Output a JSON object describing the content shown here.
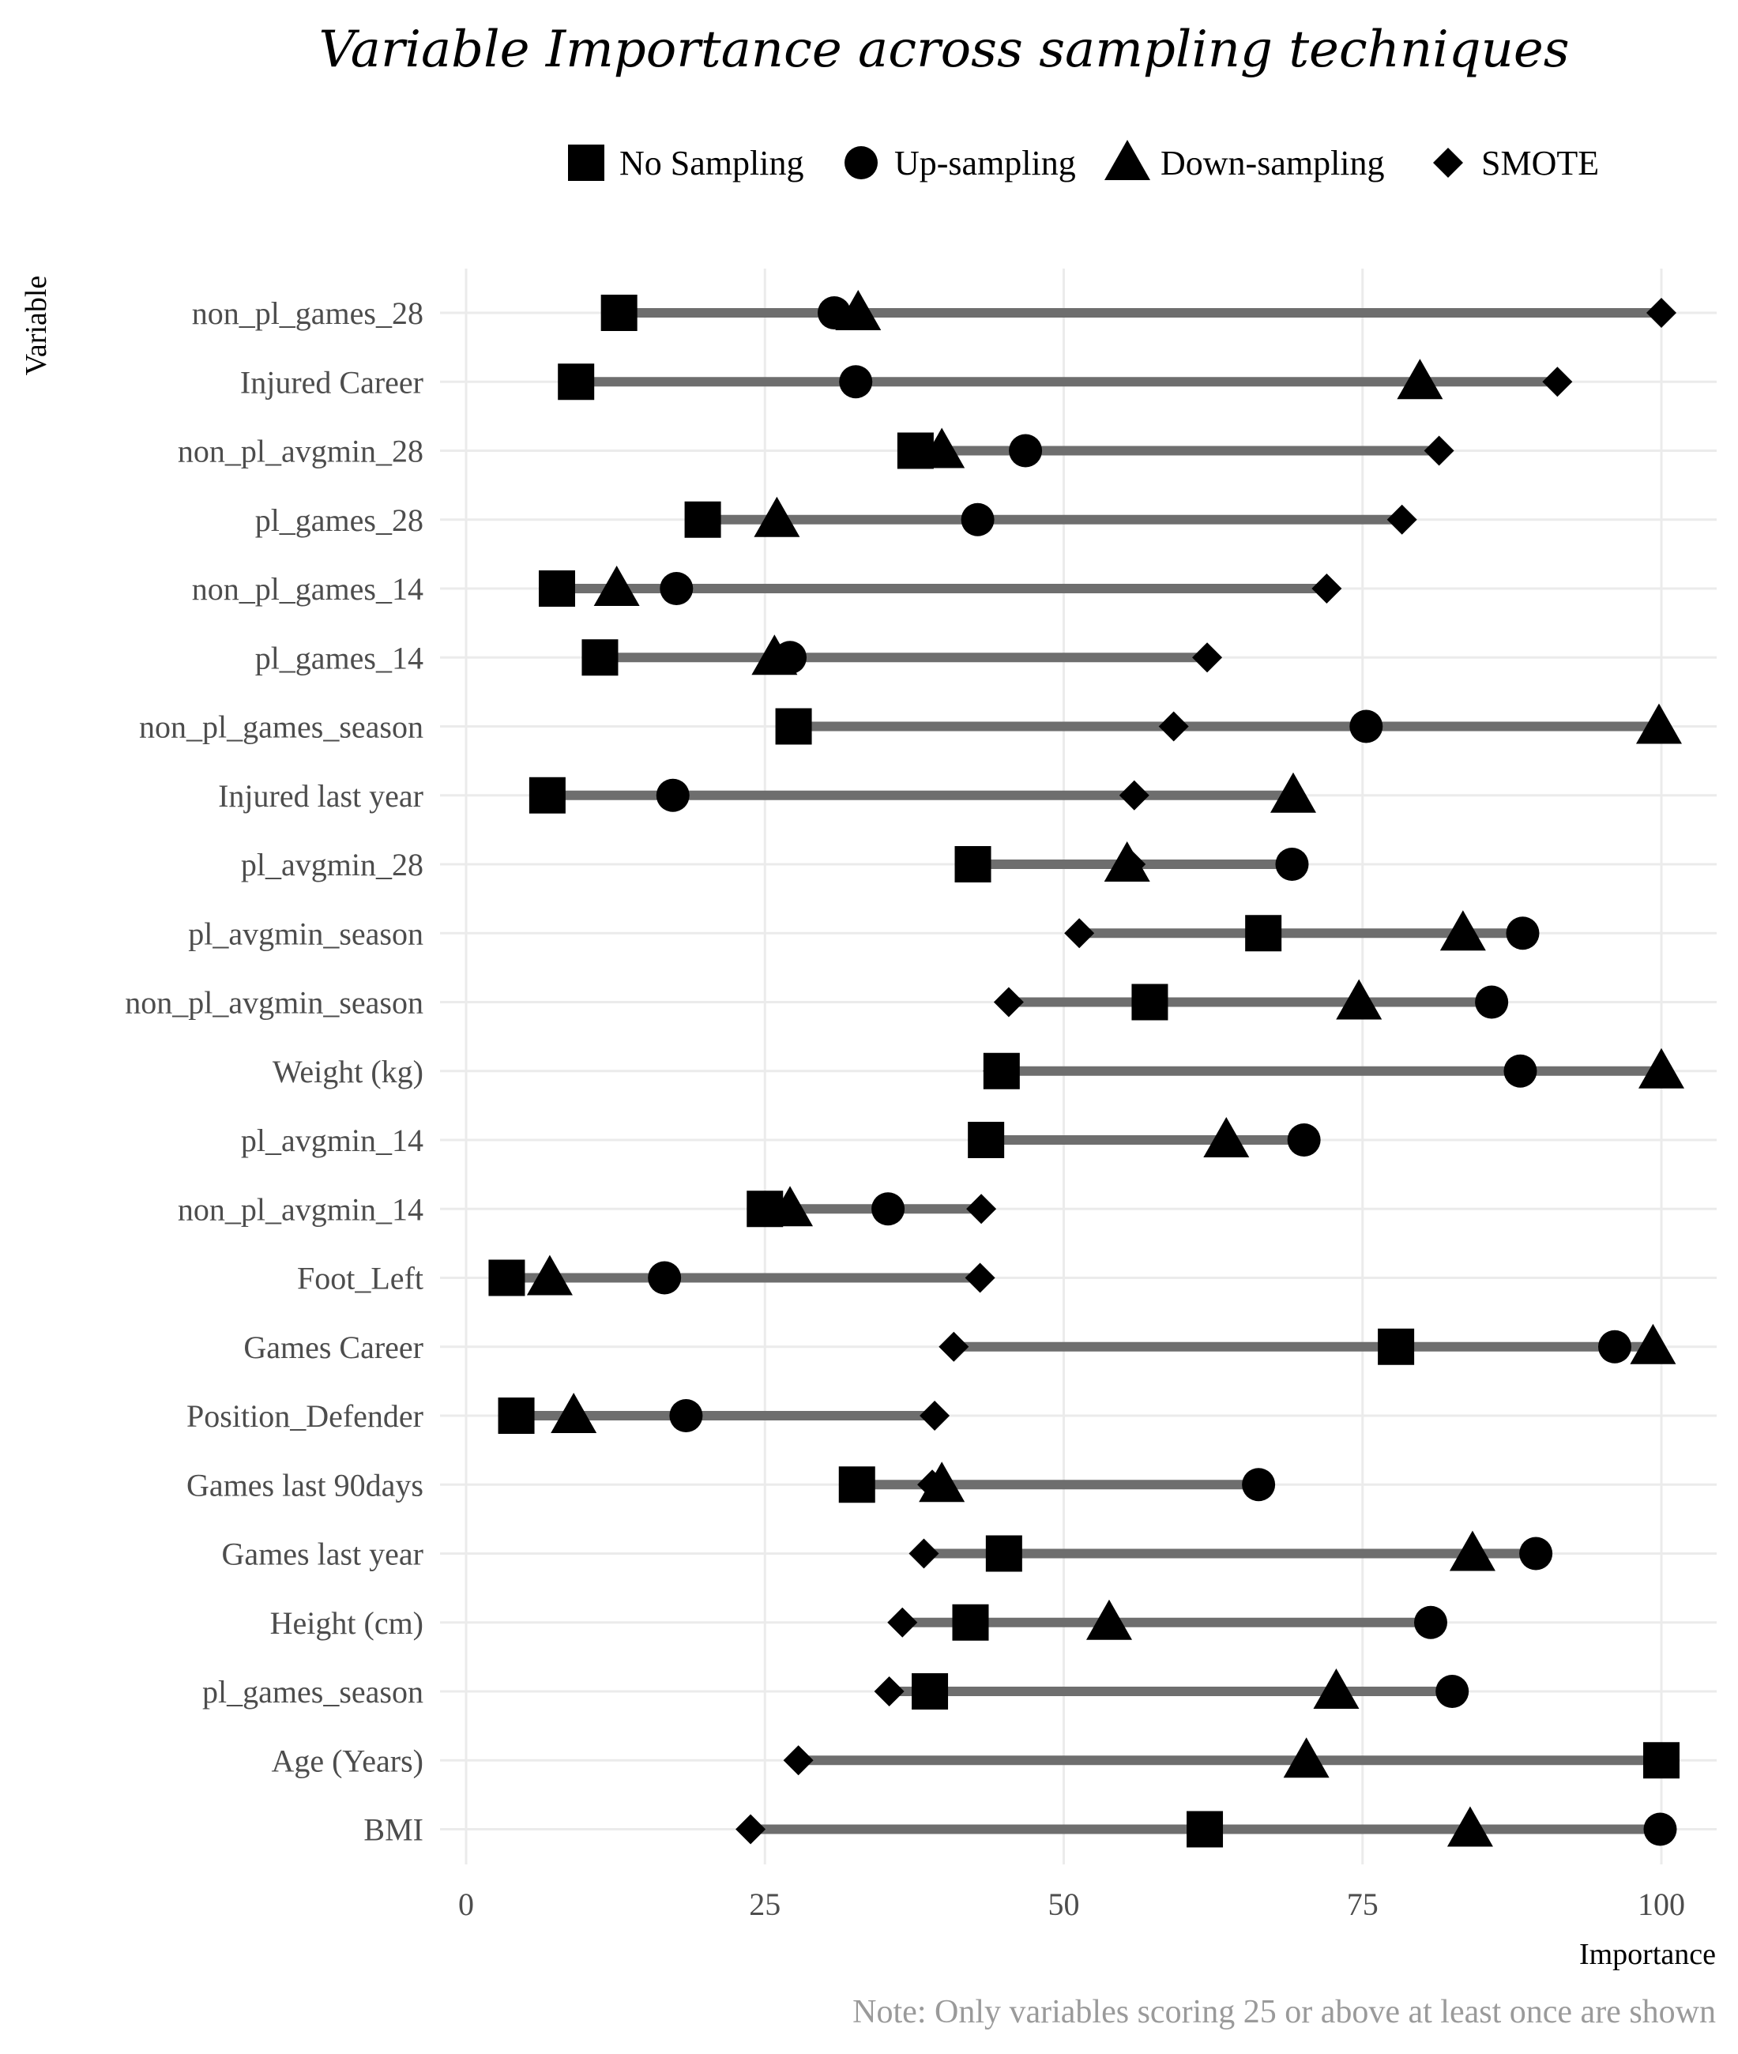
{
  "chart_data": {
    "type": "dot-range",
    "title": "Variable Importance across sampling techniques",
    "xlabel": "Importance",
    "ylabel": "Variable",
    "caption": "Note: Only variables scoring 25 or above at least once are shown",
    "xlim": [
      0,
      100
    ],
    "xticks": [
      0,
      25,
      50,
      75,
      100
    ],
    "grid": true,
    "legend_position": "top",
    "colors": {
      "marker": "#000000",
      "range_line": "#6e6e6e",
      "grid": "#ebebeb",
      "caption": "#9a9a9a"
    },
    "series": [
      {
        "name": "No Sampling",
        "shape": "square"
      },
      {
        "name": "Up-sampling",
        "shape": "circle"
      },
      {
        "name": "Down-sampling",
        "shape": "triangle"
      },
      {
        "name": "SMOTE",
        "shape": "diamond"
      }
    ],
    "rows": [
      {
        "variable": "non_pl_games_28",
        "values": [
          12.8,
          30.8,
          32.8,
          100
        ]
      },
      {
        "variable": "Injured Career",
        "values": [
          9.2,
          32.6,
          79.8,
          91.3
        ]
      },
      {
        "variable": "non_pl_avgmin_28",
        "values": [
          37.6,
          46.8,
          39.8,
          81.4
        ]
      },
      {
        "variable": "pl_games_28",
        "values": [
          19.8,
          42.8,
          26.0,
          78.3
        ]
      },
      {
        "variable": "non_pl_games_14",
        "values": [
          7.6,
          17.6,
          12.6,
          72.0
        ]
      },
      {
        "variable": "pl_games_14",
        "values": [
          11.2,
          27.1,
          25.8,
          62.0
        ]
      },
      {
        "variable": "non_pl_games_season",
        "values": [
          27.4,
          75.3,
          99.8,
          59.2
        ]
      },
      {
        "variable": "Injured last year",
        "values": [
          6.8,
          17.3,
          69.2,
          55.9
        ]
      },
      {
        "variable": "pl_avgmin_28",
        "values": [
          42.4,
          69.1,
          55.3,
          55.6
        ]
      },
      {
        "variable": "pl_avgmin_season",
        "values": [
          66.7,
          88.4,
          83.4,
          51.3
        ]
      },
      {
        "variable": "non_pl_avgmin_season",
        "values": [
          57.2,
          85.8,
          74.7,
          45.4
        ]
      },
      {
        "variable": "Weight (kg)",
        "values": [
          44.8,
          88.2,
          100,
          44.5
        ]
      },
      {
        "variable": "pl_avgmin_14",
        "values": [
          43.5,
          70.1,
          63.6,
          43.4
        ]
      },
      {
        "variable": "non_pl_avgmin_14",
        "values": [
          25.0,
          35.3,
          27.1,
          43.1
        ]
      },
      {
        "variable": "Foot_Left",
        "values": [
          3.4,
          16.6,
          7.0,
          43.0
        ]
      },
      {
        "variable": "Games Career",
        "values": [
          77.8,
          96.1,
          99.3,
          40.8
        ]
      },
      {
        "variable": "Position_Defender",
        "values": [
          4.2,
          18.4,
          9.0,
          39.2
        ]
      },
      {
        "variable": "Games last 90days",
        "values": [
          32.7,
          66.3,
          39.8,
          39.0
        ]
      },
      {
        "variable": "Games last year",
        "values": [
          45.0,
          89.5,
          84.2,
          38.3
        ]
      },
      {
        "variable": "Height (cm)",
        "values": [
          42.2,
          80.7,
          53.8,
          36.5
        ]
      },
      {
        "variable": "pl_games_season",
        "values": [
          38.8,
          82.5,
          72.8,
          35.4
        ]
      },
      {
        "variable": "Age (Years)",
        "values": [
          100,
          null,
          70.3,
          27.8
        ]
      },
      {
        "variable": "BMI",
        "values": [
          61.8,
          99.9,
          84.0,
          23.8
        ]
      }
    ]
  }
}
